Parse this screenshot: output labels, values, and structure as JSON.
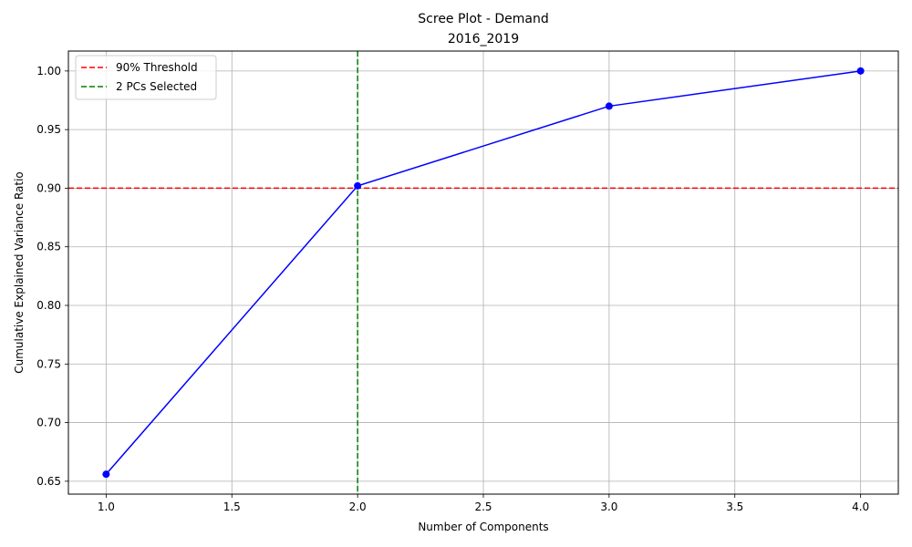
{
  "chart_data": {
    "type": "line",
    "title": "Scree Plot - Demand",
    "subtitle": "2016_2019",
    "xlabel": "Number of Components",
    "ylabel": "Cumulative Explained Variance Ratio",
    "x": [
      1,
      2,
      3,
      4
    ],
    "series": [
      {
        "values": [
          0.656,
          0.902,
          0.97,
          1.0
        ],
        "color": "#0000ff",
        "marker": "circle"
      }
    ],
    "reference_lines": [
      {
        "orientation": "horizontal",
        "value": 0.9,
        "color": "#ff0000",
        "style": "dashed",
        "label": "90% Threshold"
      },
      {
        "orientation": "vertical",
        "value": 2,
        "color": "#008000",
        "style": "dashed",
        "label": "2 PCs Selected"
      }
    ],
    "xlim": [
      0.85,
      4.15
    ],
    "ylim": [
      0.639,
      1.017
    ],
    "xticks": [
      "1.0",
      "1.5",
      "2.0",
      "2.5",
      "3.0",
      "3.5",
      "4.0"
    ],
    "yticks": [
      "0.65",
      "0.70",
      "0.75",
      "0.80",
      "0.85",
      "0.90",
      "0.95",
      "1.00"
    ],
    "grid": true,
    "legend_position": "top-left"
  }
}
